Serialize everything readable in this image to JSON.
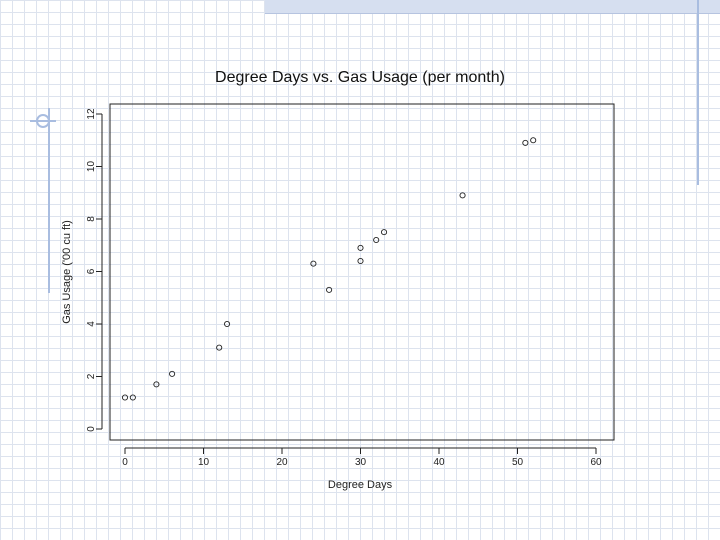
{
  "chart_data": {
    "type": "scatter",
    "title": "Degree Days vs. Gas Usage (per month)",
    "xlabel": "Degree Days",
    "ylabel": "Gas Usage ('00 cu ft)",
    "xlim": [
      0,
      60
    ],
    "ylim": [
      0,
      12
    ],
    "xticks": [
      0,
      10,
      20,
      30,
      40,
      50,
      60
    ],
    "yticks": [
      0,
      2,
      4,
      6,
      8,
      10,
      12
    ],
    "grid": false,
    "marker": "open-circle",
    "points": [
      {
        "x": 0,
        "y": 1.2
      },
      {
        "x": 1,
        "y": 1.2
      },
      {
        "x": 4,
        "y": 1.7
      },
      {
        "x": 6,
        "y": 2.1
      },
      {
        "x": 12,
        "y": 3.1
      },
      {
        "x": 13,
        "y": 4.0
      },
      {
        "x": 24,
        "y": 6.3
      },
      {
        "x": 26,
        "y": 5.3
      },
      {
        "x": 30,
        "y": 6.4
      },
      {
        "x": 30,
        "y": 6.9
      },
      {
        "x": 32,
        "y": 7.2
      },
      {
        "x": 33,
        "y": 7.5
      },
      {
        "x": 43,
        "y": 8.9
      },
      {
        "x": 51,
        "y": 10.9
      },
      {
        "x": 52,
        "y": 11.0
      }
    ]
  },
  "colors": {
    "ink": "#222222",
    "background": "#ffffff",
    "grid_pattern": "#dde3ee",
    "accent": "#a9bde0"
  }
}
